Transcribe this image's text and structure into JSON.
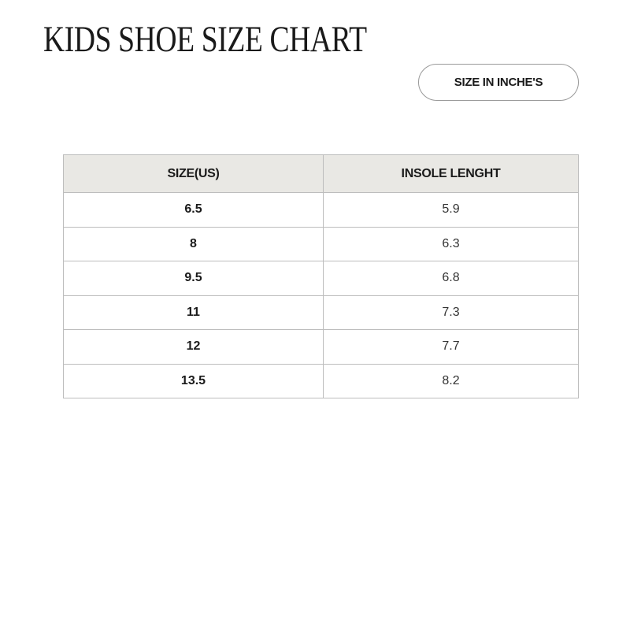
{
  "title": "KIDS SHOE SIZE CHART",
  "unit_button": "SIZE IN INCHE'S",
  "table": {
    "headers": [
      "SIZE(US)",
      "INSOLE LENGHT"
    ],
    "rows": [
      {
        "size": "6.5",
        "length": "5.9"
      },
      {
        "size": "8",
        "length": "6.3"
      },
      {
        "size": "9.5",
        "length": "6.8"
      },
      {
        "size": "11",
        "length": "7.3"
      },
      {
        "size": "12",
        "length": "7.7"
      },
      {
        "size": "13.5",
        "length": "8.2"
      }
    ]
  },
  "colors": {
    "header_bg": "#e9e8e4",
    "border": "#bdbdbd"
  }
}
